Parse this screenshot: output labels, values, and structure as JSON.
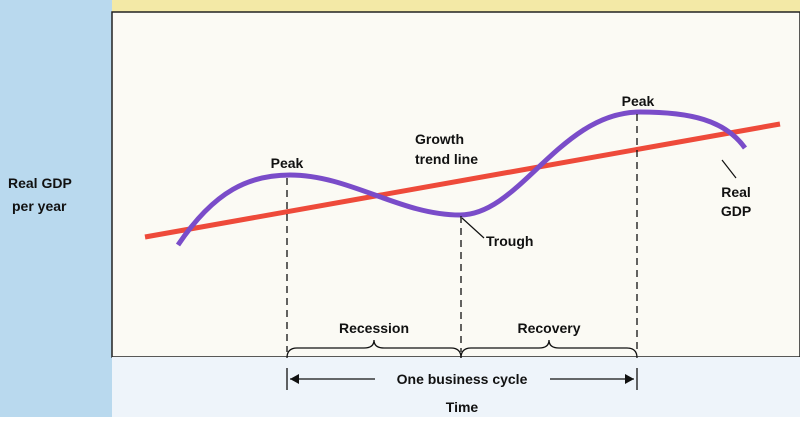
{
  "y_axis_label": [
    "Real GDP",
    "per year"
  ],
  "x_axis_label": "Time",
  "labels": {
    "peak_1": "Peak",
    "peak_2": "Peak",
    "trough": "Trough",
    "trend_line": [
      "Growth",
      "trend line"
    ],
    "real_gdp": [
      "Real",
      "GDP"
    ],
    "recession": "Recession",
    "recovery": "Recovery",
    "business_cycle": "One business cycle"
  }
}
